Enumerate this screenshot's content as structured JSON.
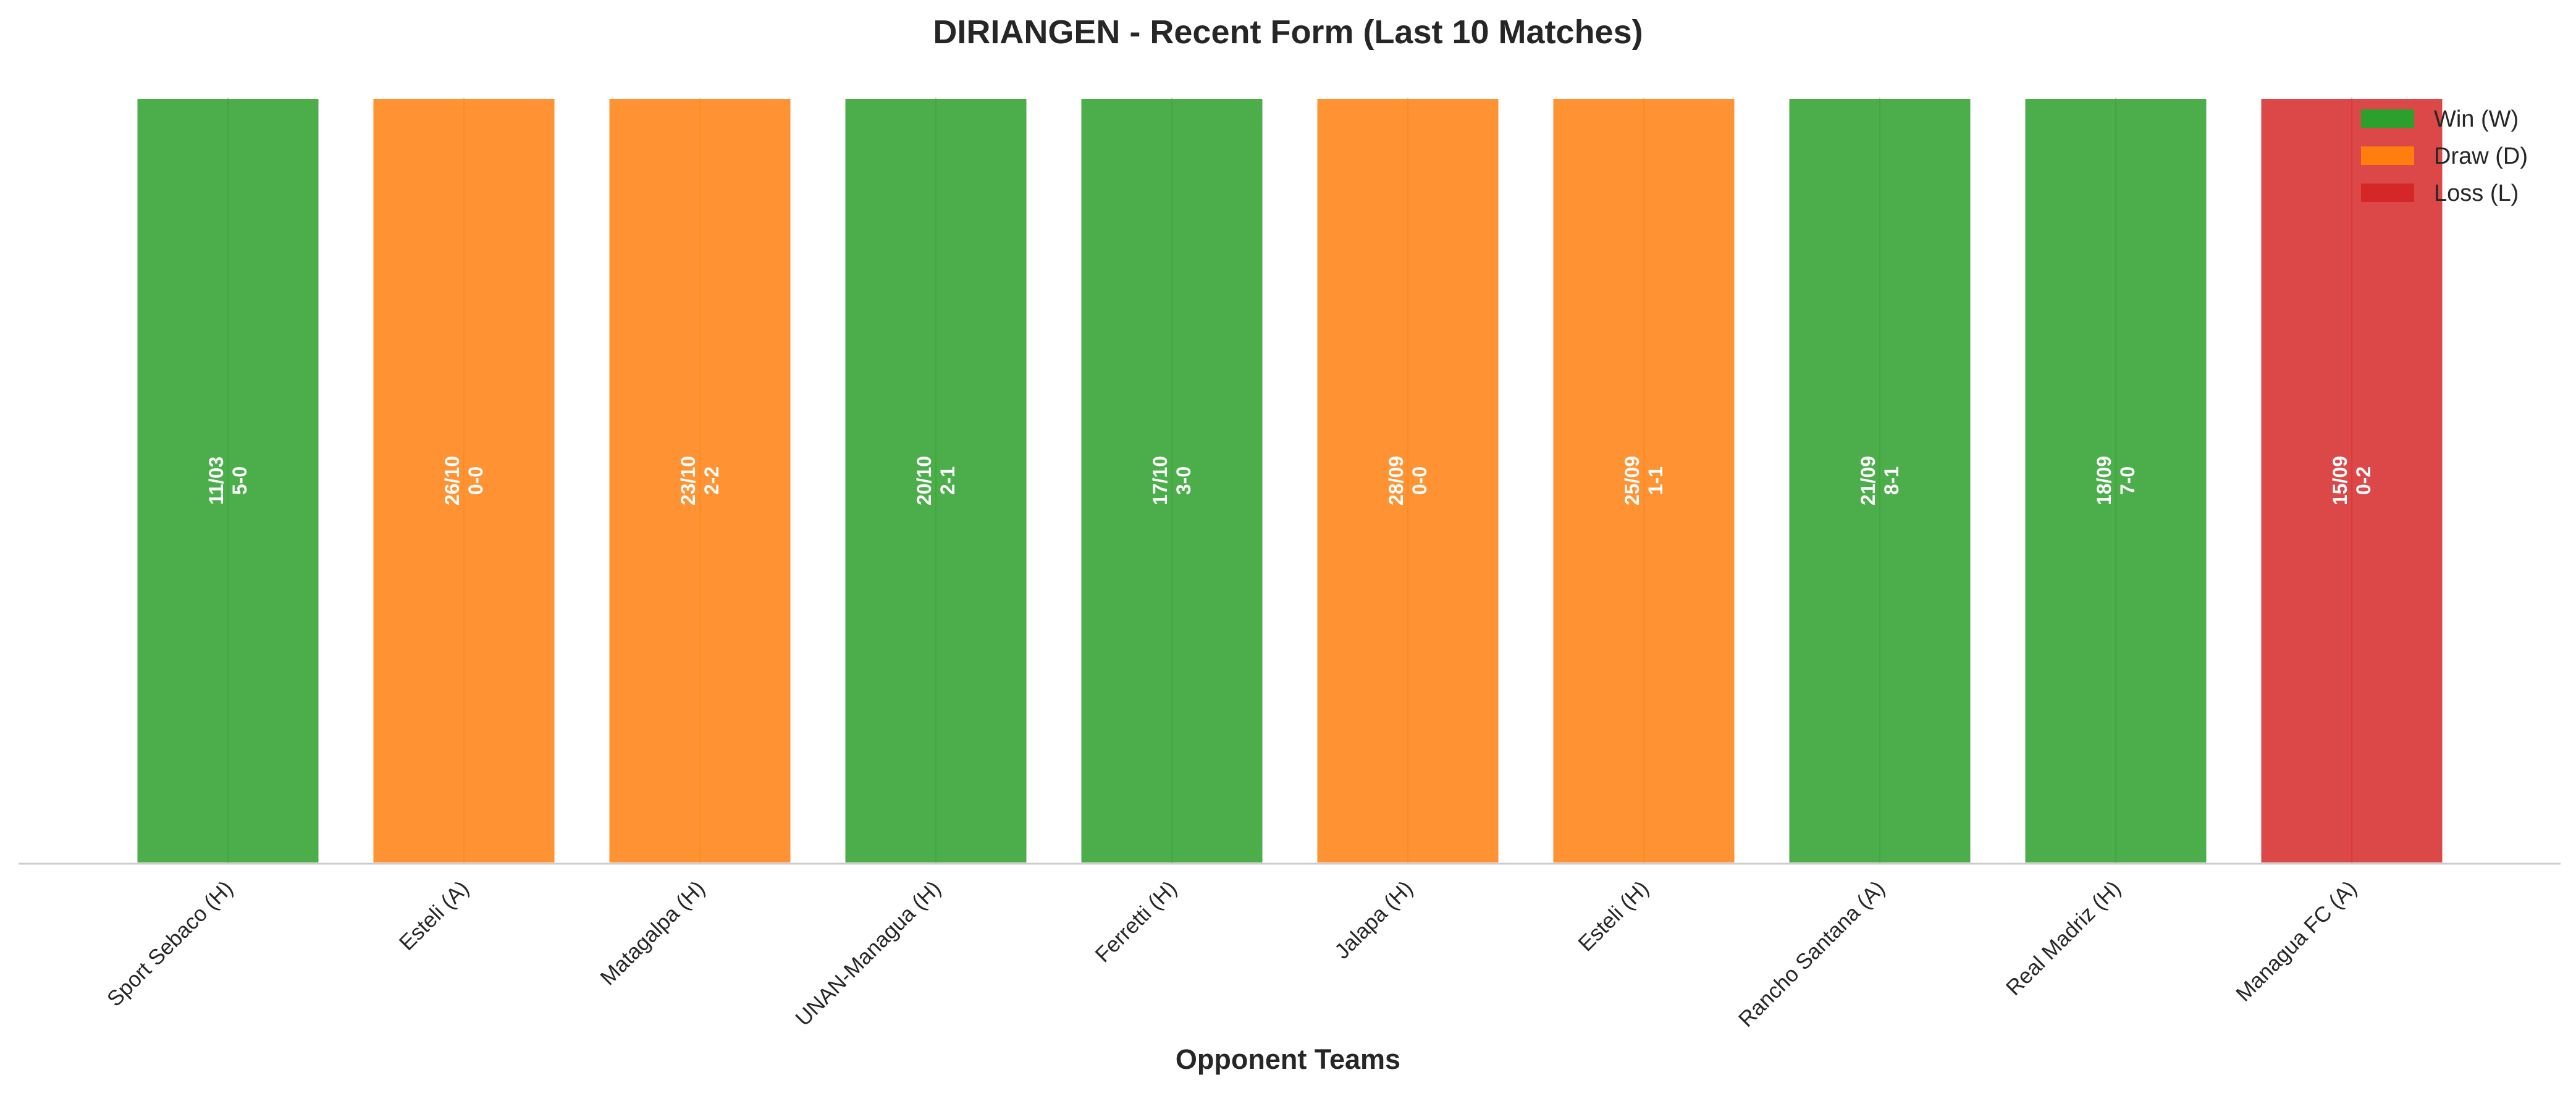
{
  "chart_data": {
    "type": "bar",
    "title": "DIRIANGEN - Recent Form (Last 10 Matches)",
    "xlabel": "Opponent Teams",
    "ylabel": "",
    "ylim": [
      0,
      1
    ],
    "grid": false,
    "legend_position": "top-right",
    "categories": [
      "Sport Sebaco (H)",
      "Esteli (A)",
      "Matagalpa (H)",
      "UNAN-Managua (H)",
      "Ferretti (H)",
      "Jalapa (H)",
      "Esteli (H)",
      "Rancho Santana (A)",
      "Real Madriz (H)",
      "Managua FC (A)"
    ],
    "values": [
      1,
      1,
      1,
      1,
      1,
      1,
      1,
      1,
      1,
      1
    ],
    "results": [
      "W",
      "D",
      "D",
      "W",
      "W",
      "D",
      "D",
      "W",
      "W",
      "L"
    ],
    "dates": [
      "11/03",
      "26/10",
      "23/10",
      "20/10",
      "17/10",
      "28/09",
      "25/09",
      "21/09",
      "18/09",
      "15/09"
    ],
    "scores": [
      "5-0",
      "0-0",
      "2-2",
      "2-1",
      "3-0",
      "0-0",
      "1-1",
      "8-1",
      "7-0",
      "0-2"
    ],
    "legend": [
      {
        "key": "W",
        "label": "Win (W)",
        "color": "#2ca02c"
      },
      {
        "key": "D",
        "label": "Draw (D)",
        "color": "#ff7f0e"
      },
      {
        "key": "L",
        "label": "Loss (L)",
        "color": "#d62728"
      }
    ],
    "colors": {
      "W": "#2ca02c",
      "D": "#ff7f0e",
      "L": "#d62728"
    }
  }
}
